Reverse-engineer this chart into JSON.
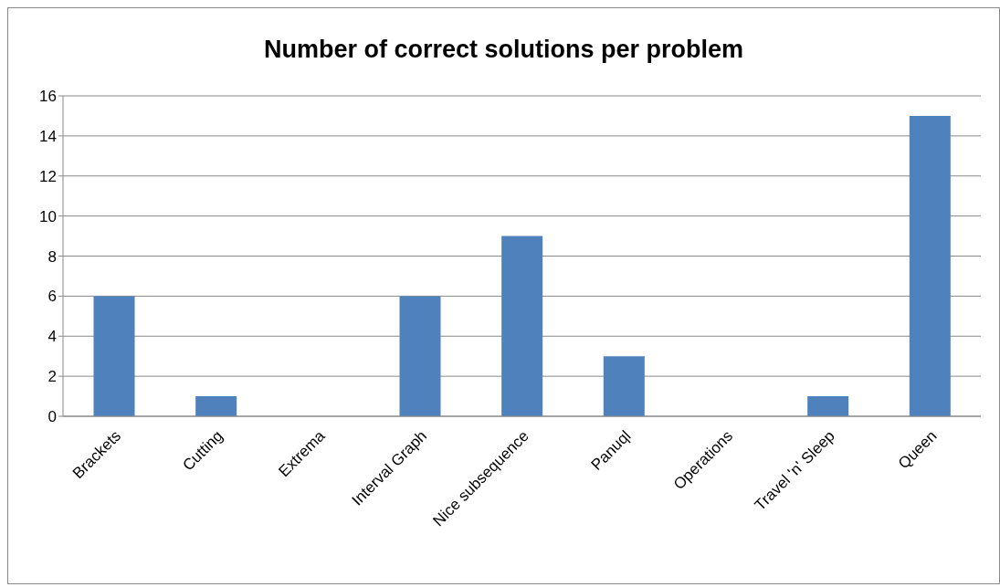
{
  "chart_data": {
    "type": "bar",
    "title": "Number of correct solutions per problem",
    "categories": [
      "Brackets",
      "Cutting",
      "Extrema",
      "Interval Graph",
      "Nice subsequence",
      "Panuql",
      "Operations",
      "Travel 'n' Sleep",
      "Queen"
    ],
    "values": [
      6,
      1,
      0,
      6,
      9,
      3,
      0,
      1,
      15
    ],
    "color": "#4f81bd",
    "ylim": [
      0,
      16
    ],
    "yticks": [
      0,
      2,
      4,
      6,
      8,
      10,
      12,
      14,
      16
    ],
    "grid": "y"
  }
}
